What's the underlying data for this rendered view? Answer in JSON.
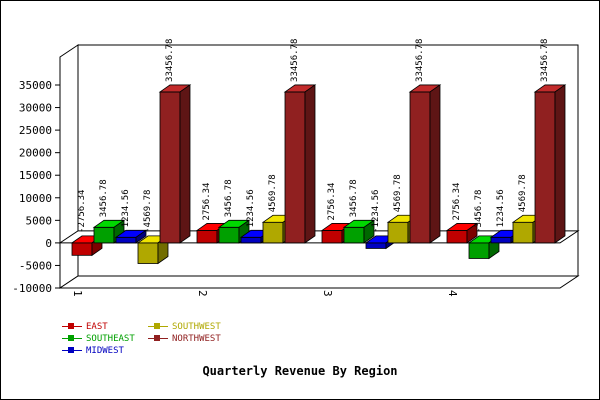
{
  "chart_data": {
    "type": "bar",
    "title": "Quarterly Revenue By Region",
    "categories": [
      "1",
      "2",
      "3",
      "4"
    ],
    "ylim": [
      -10000,
      35000
    ],
    "yticks": [
      -10000,
      -5000,
      0,
      5000,
      10000,
      15000,
      20000,
      25000,
      30000,
      35000
    ],
    "grid": false,
    "legend_position": "bottom-left",
    "series": [
      {
        "name": "EAST",
        "color": "#c00000",
        "values": [
          -2756.34,
          2756.34,
          2756.34,
          2756.34
        ],
        "labels": [
          "-2756.34",
          "2756.34",
          "2756.34",
          "2756.34"
        ]
      },
      {
        "name": "SOUTHEAST",
        "color": "#00a000",
        "values": [
          3456.78,
          3456.78,
          3456.78,
          -3456.78
        ],
        "labels": [
          "3456.78",
          "3456.78",
          "3456.78",
          "-3456.78"
        ]
      },
      {
        "name": "MIDWEST",
        "color": "#0000c0",
        "values": [
          1234.56,
          1234.56,
          -1234.56,
          1234.56
        ],
        "labels": [
          "1234.56",
          "1234.56",
          "-1234.56",
          "1234.56"
        ]
      },
      {
        "name": "SOUTHWEST",
        "color": "#b0a800",
        "values": [
          -4569.78,
          4569.78,
          4569.78,
          4569.78
        ],
        "labels": [
          "-4569.78",
          "4569.78",
          "4569.78",
          "4569.78"
        ]
      },
      {
        "name": "NORTHWEST",
        "color": "#902020",
        "values": [
          33456.78,
          33456.78,
          33456.78,
          33456.78
        ],
        "labels": [
          "33456.78",
          "33456.78",
          "33456.78",
          "33456.78"
        ]
      }
    ]
  }
}
